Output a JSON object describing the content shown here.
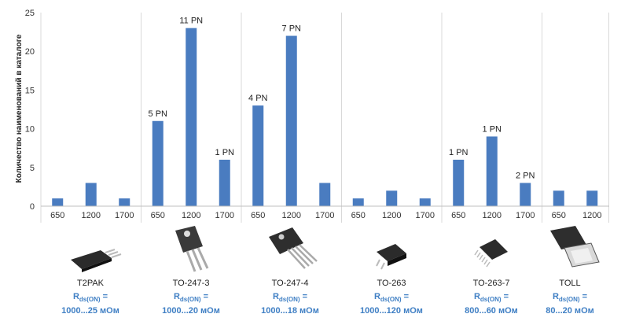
{
  "chart_data": {
    "type": "bar",
    "ylabel": "Количество наименований в каталоге",
    "ylim": [
      0,
      25
    ],
    "yticks": [
      0,
      5,
      10,
      15,
      20,
      25
    ],
    "grid": "vertical group separators",
    "bar_color": "#4a7cc0",
    "groups": [
      {
        "package": "T2PAK",
        "categories": [
          "650",
          "1200",
          "1700"
        ],
        "values": [
          1,
          3,
          1
        ],
        "labels": [
          "",
          "",
          ""
        ]
      },
      {
        "package": "TO-247-3",
        "categories": [
          "650",
          "1200",
          "1700"
        ],
        "values": [
          11,
          23,
          6
        ],
        "labels": [
          "5 PN",
          "11 PN",
          "1 PN"
        ]
      },
      {
        "package": "TO-247-4",
        "categories": [
          "650",
          "1200",
          "1700"
        ],
        "values": [
          13,
          22,
          3
        ],
        "labels": [
          "4 PN",
          "7 PN",
          ""
        ]
      },
      {
        "package": "TO-263",
        "categories": [
          "650",
          "1200",
          "1700"
        ],
        "values": [
          1,
          2,
          1
        ],
        "labels": [
          "",
          "",
          ""
        ]
      },
      {
        "package": "TO-263-7",
        "categories": [
          "650",
          "1200",
          "1700"
        ],
        "values": [
          6,
          9,
          3
        ],
        "labels": [
          "1 PN",
          "1 PN",
          "2 PN"
        ]
      },
      {
        "package": "TOLL",
        "categories": [
          "650",
          "1200"
        ],
        "values": [
          2,
          2
        ],
        "labels": [
          "",
          ""
        ]
      }
    ]
  },
  "packages": [
    {
      "name": "T2PAK",
      "rds_prefix": "R",
      "rds_sub": "ds(ON)",
      "rds_eq": " =",
      "rds_range": "1000...25 мОм"
    },
    {
      "name": "TO-247-3",
      "rds_prefix": "R",
      "rds_sub": "ds(ON)",
      "rds_eq": " =",
      "rds_range": "1000...20 мОм"
    },
    {
      "name": "TO-247-4",
      "rds_prefix": "R",
      "rds_sub": "ds(ON)",
      "rds_eq": " =",
      "rds_range": "1000...18 мОм"
    },
    {
      "name": "TO-263",
      "rds_prefix": "R",
      "rds_sub": "ds(ON)",
      "rds_eq": " =",
      "rds_range": "1000...120 мОм"
    },
    {
      "name": "TO-263-7",
      "rds_prefix": "R",
      "rds_sub": "ds(ON)",
      "rds_eq": " =",
      "rds_range": "800...60 мОм"
    },
    {
      "name": "TOLL",
      "rds_prefix": "R",
      "rds_sub": "ds(ON)",
      "rds_eq": " =",
      "rds_range": "80...20 мОм"
    }
  ]
}
